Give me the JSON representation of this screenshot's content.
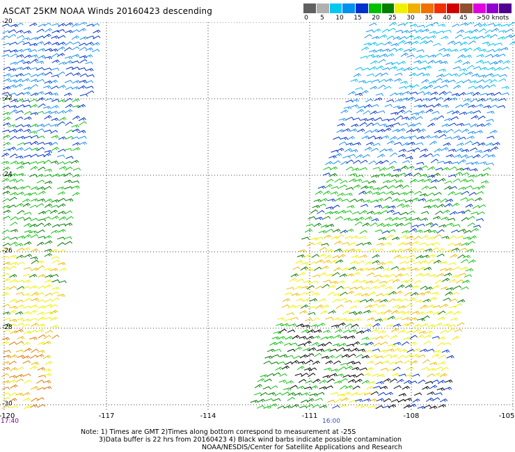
{
  "title": "ASCAT 25KM NOAA Winds 20160423 descending",
  "legend": {
    "colors": [
      "#606060",
      "#b0b0b0",
      "#00c8f0",
      "#0090f0",
      "#0030d0",
      "#00c000",
      "#008000",
      "#f0f000",
      "#f0b000",
      "#f07000",
      "#f03000",
      "#d00000",
      "#905030",
      "#e000e0",
      "#9000d0",
      "#500090"
    ],
    "labels": [
      "0",
      "5",
      "10",
      "15",
      "20",
      "25",
      "30",
      "35",
      "40",
      "45",
      ">50 knots"
    ]
  },
  "axes": {
    "lat_labels": [
      "-20",
      "-22",
      "-24",
      "-26",
      "-28",
      "-30"
    ],
    "lon_labels": [
      "-120",
      "-117",
      "-114",
      "-111",
      "-108",
      "-105"
    ]
  },
  "time_labels": {
    "left": "17:40",
    "middle": "16:00"
  },
  "notes": {
    "line1": "Note: 1) Times are GMT 2)Times along bottom correspond to measurement at -25S",
    "line2": "3)Data buffer is 22 hrs from 20160423 4) Black wind barbs indicate possible contamination",
    "credit": "NOAA/NESDIS/Center for Satellite Applications and Research"
  }
}
